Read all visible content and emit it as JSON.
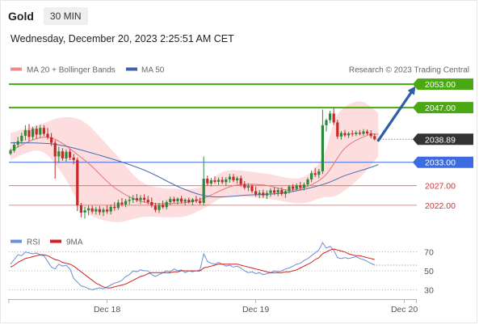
{
  "header": {
    "symbol": "Gold",
    "timeframe": "30 MIN",
    "datetime": "Wednesday, December 20, 2023 2:25:51 AM CET"
  },
  "legend": {
    "ma20": "MA 20 + Bollinger Bands",
    "ma50": "MA 50",
    "credit": "Research © 2023 Trading Central"
  },
  "colors": {
    "up": "#2a8a3a",
    "down": "#c62828",
    "ma20": "#e07878",
    "ma50": "#4a6bb5",
    "band": "#fdd7d7",
    "green_level": "#4aa812",
    "blue_level": "#3d6be0",
    "red_level": "#e86060",
    "price_label": "#333333",
    "arrow": "#2e5ea8",
    "rsi": "#6a8fd8",
    "rsi_ma": "#d42020"
  },
  "chart_data": [
    {
      "type": "candlestick",
      "ylim": [
        2017,
        2058
      ],
      "x_ticks": [
        "Dec 18",
        "Dec 19",
        "Dec 20"
      ],
      "x_tick_index": [
        26,
        66,
        106
      ],
      "levels": [
        {
          "value": 2053.0,
          "label": "2053.00",
          "style": "green"
        },
        {
          "value": 2047.0,
          "label": "2047.00",
          "style": "green"
        },
        {
          "value": 2038.89,
          "label": "2038.89",
          "style": "price"
        },
        {
          "value": 2033.0,
          "label": "2033.00",
          "style": "blue"
        },
        {
          "value": 2027.0,
          "label": "2027.00",
          "style": "red"
        },
        {
          "value": 2022.0,
          "label": "2022.00",
          "style": "red"
        }
      ],
      "candles": [
        [
          2035.2,
          2036.5,
          2034.8,
          2036.0
        ],
        [
          2036.0,
          2038.2,
          2035.5,
          2037.5
        ],
        [
          2037.5,
          2039.5,
          2036.8,
          2038.4
        ],
        [
          2038.4,
          2040.6,
          2037.7,
          2039.8
        ],
        [
          2039.8,
          2042.5,
          2038.6,
          2041.2
        ],
        [
          2041.2,
          2042.8,
          2038.4,
          2039.5
        ],
        [
          2039.5,
          2042.1,
          2038.7,
          2041.6
        ],
        [
          2041.6,
          2042.4,
          2039.0,
          2040.1
        ],
        [
          2040.1,
          2042.6,
          2039.3,
          2041.8
        ],
        [
          2041.8,
          2042.5,
          2039.7,
          2040.3
        ],
        [
          2040.3,
          2041.8,
          2038.9,
          2039.4
        ],
        [
          2039.4,
          2040.5,
          2037.2,
          2038.0
        ],
        [
          2038.0,
          2038.6,
          2028.8,
          2034.5
        ],
        [
          2034.5,
          2037.0,
          2032.8,
          2035.8
        ],
        [
          2035.8,
          2036.6,
          2033.4,
          2034.0
        ],
        [
          2034.0,
          2036.3,
          2033.1,
          2035.7
        ],
        [
          2035.7,
          2036.4,
          2033.6,
          2034.2
        ],
        [
          2034.2,
          2035.1,
          2032.5,
          2033.6
        ],
        [
          2033.6,
          2034.2,
          2020.5,
          2022.0
        ],
        [
          2022.0,
          2022.6,
          2018.9,
          2020.1
        ],
        [
          2020.1,
          2021.6,
          2018.6,
          2020.7
        ],
        [
          2020.7,
          2022.0,
          2019.4,
          2021.2
        ],
        [
          2021.2,
          2021.9,
          2019.8,
          2020.4
        ],
        [
          2020.4,
          2021.6,
          2019.6,
          2021.0
        ],
        [
          2021.0,
          2021.8,
          2019.5,
          2020.2
        ],
        [
          2020.2,
          2021.4,
          2019.2,
          2020.9
        ],
        [
          2020.9,
          2022.0,
          2019.8,
          2020.4
        ],
        [
          2020.4,
          2022.2,
          2019.6,
          2021.6
        ],
        [
          2021.6,
          2022.8,
          2020.6,
          2021.3
        ],
        [
          2021.3,
          2023.4,
          2020.8,
          2022.7
        ],
        [
          2022.7,
          2023.8,
          2021.7,
          2022.2
        ],
        [
          2022.2,
          2023.6,
          2021.5,
          2023.1
        ],
        [
          2023.1,
          2024.2,
          2022.2,
          2023.4
        ],
        [
          2023.4,
          2024.6,
          2022.6,
          2023.8
        ],
        [
          2023.8,
          2024.9,
          2022.8,
          2023.3
        ],
        [
          2023.3,
          2024.6,
          2022.3,
          2023.9
        ],
        [
          2023.9,
          2024.8,
          2022.7,
          2023.4
        ],
        [
          2023.4,
          2024.4,
          2022.2,
          2022.8
        ],
        [
          2022.8,
          2024.0,
          2021.4,
          2021.9
        ],
        [
          2021.9,
          2022.6,
          2020.2,
          2020.8
        ],
        [
          2020.8,
          2022.6,
          2020.0,
          2022.1
        ],
        [
          2022.1,
          2023.2,
          2021.1,
          2021.5
        ],
        [
          2021.5,
          2023.3,
          2020.9,
          2022.8
        ],
        [
          2022.8,
          2024.2,
          2022.0,
          2023.6
        ],
        [
          2023.6,
          2024.2,
          2022.6,
          2023.0
        ],
        [
          2023.0,
          2024.0,
          2022.2,
          2023.7
        ],
        [
          2023.7,
          2024.4,
          2022.4,
          2022.9
        ],
        [
          2022.9,
          2023.8,
          2022.0,
          2023.4
        ],
        [
          2023.4,
          2024.0,
          2022.4,
          2022.8
        ],
        [
          2022.8,
          2023.8,
          2022.0,
          2023.5
        ],
        [
          2023.5,
          2024.4,
          2022.6,
          2023.1
        ],
        [
          2023.1,
          2024.0,
          2022.2,
          2022.6
        ],
        [
          2022.6,
          2034.5,
          2022.0,
          2028.8
        ],
        [
          2028.8,
          2029.6,
          2027.0,
          2027.6
        ],
        [
          2027.6,
          2029.0,
          2026.8,
          2028.4
        ],
        [
          2028.4,
          2029.4,
          2027.6,
          2028.0
        ],
        [
          2028.0,
          2029.1,
          2027.2,
          2028.5
        ],
        [
          2028.5,
          2029.3,
          2027.4,
          2027.9
        ],
        [
          2027.9,
          2029.2,
          2027.0,
          2028.6
        ],
        [
          2028.6,
          2030.0,
          2027.8,
          2029.3
        ],
        [
          2029.3,
          2030.0,
          2027.9,
          2028.4
        ],
        [
          2028.4,
          2029.4,
          2027.5,
          2028.9
        ],
        [
          2028.9,
          2029.6,
          2026.8,
          2027.4
        ],
        [
          2027.4,
          2028.2,
          2026.0,
          2026.5
        ],
        [
          2026.5,
          2027.6,
          2025.6,
          2026.9
        ],
        [
          2026.9,
          2027.4,
          2025.1,
          2025.6
        ],
        [
          2025.6,
          2026.8,
          2024.2,
          2024.8
        ],
        [
          2024.8,
          2025.9,
          2023.8,
          2025.2
        ],
        [
          2025.2,
          2026.0,
          2023.9,
          2024.5
        ],
        [
          2024.5,
          2025.8,
          2023.6,
          2025.1
        ],
        [
          2025.1,
          2026.4,
          2024.2,
          2025.8
        ],
        [
          2025.8,
          2026.6,
          2024.6,
          2025.2
        ],
        [
          2025.2,
          2026.4,
          2024.3,
          2025.9
        ],
        [
          2025.9,
          2026.6,
          2024.4,
          2024.9
        ],
        [
          2024.9,
          2026.0,
          2023.9,
          2025.6
        ],
        [
          2025.6,
          2027.2,
          2025.0,
          2026.8
        ],
        [
          2026.8,
          2027.4,
          2025.6,
          2026.2
        ],
        [
          2026.2,
          2027.6,
          2025.8,
          2027.1
        ],
        [
          2027.1,
          2028.0,
          2025.9,
          2026.5
        ],
        [
          2026.5,
          2027.8,
          2025.8,
          2027.3
        ],
        [
          2027.3,
          2029.1,
          2026.8,
          2028.6
        ],
        [
          2028.6,
          2030.9,
          2027.9,
          2030.2
        ],
        [
          2030.2,
          2031.6,
          2029.2,
          2029.8
        ],
        [
          2029.8,
          2031.3,
          2028.9,
          2030.7
        ],
        [
          2030.7,
          2046.5,
          2030.0,
          2042.5
        ],
        [
          2042.5,
          2044.2,
          2040.9,
          2043.8
        ],
        [
          2043.8,
          2046.2,
          2043.0,
          2045.5
        ],
        [
          2045.5,
          2046.8,
          2042.6,
          2043.2
        ],
        [
          2043.2,
          2043.9,
          2039.0,
          2039.6
        ],
        [
          2039.6,
          2041.0,
          2038.8,
          2040.5
        ],
        [
          2040.5,
          2041.3,
          2039.5,
          2039.9
        ],
        [
          2039.9,
          2040.8,
          2039.2,
          2040.4
        ],
        [
          2040.4,
          2041.2,
          2039.6,
          2040.2
        ],
        [
          2040.2,
          2041.1,
          2039.7,
          2040.6
        ],
        [
          2040.6,
          2041.3,
          2039.9,
          2040.3
        ],
        [
          2040.3,
          2041.5,
          2039.8,
          2040.9
        ],
        [
          2040.9,
          2041.4,
          2040.0,
          2040.4
        ],
        [
          2040.4,
          2041.2,
          2039.2,
          2039.7
        ],
        [
          2039.7,
          2040.4,
          2038.6,
          2038.9
        ]
      ],
      "ma20": [
        [
          0,
          2036.0
        ],
        [
          10,
          2039.4
        ],
        [
          20,
          2033.5
        ],
        [
          28,
          2026.5
        ],
        [
          36,
          2022.8
        ],
        [
          46,
          2022.6
        ],
        [
          52,
          2023.8
        ],
        [
          60,
          2027.0
        ],
        [
          68,
          2027.2
        ],
        [
          76,
          2025.9
        ],
        [
          84,
          2029.0
        ],
        [
          90,
          2036.6
        ],
        [
          96,
          2039.9
        ],
        [
          99,
          2040.2
        ]
      ],
      "ma50": [
        [
          0,
          2038.0
        ],
        [
          12,
          2037.6
        ],
        [
          24,
          2034.8
        ],
        [
          36,
          2031.0
        ],
        [
          46,
          2026.4
        ],
        [
          54,
          2024.2
        ],
        [
          64,
          2024.6
        ],
        [
          74,
          2025.2
        ],
        [
          84,
          2027.3
        ],
        [
          90,
          2029.6
        ],
        [
          96,
          2031.4
        ],
        [
          99,
          2032.4
        ]
      ],
      "bands": {
        "upper": [
          [
            0,
            2040.5
          ],
          [
            8,
            2042.7
          ],
          [
            14,
            2044.5
          ],
          [
            20,
            2043.2
          ],
          [
            28,
            2035.4
          ],
          [
            36,
            2027.6
          ],
          [
            46,
            2026.2
          ],
          [
            52,
            2027.0
          ],
          [
            58,
            2030.8
          ],
          [
            68,
            2030.2
          ],
          [
            78,
            2029.0
          ],
          [
            84,
            2034.3
          ],
          [
            88,
            2045.2
          ],
          [
            94,
            2048.6
          ],
          [
            99,
            2045.6
          ]
        ],
        "lower": [
          [
            0,
            2033.6
          ],
          [
            8,
            2035.9
          ],
          [
            14,
            2030.0
          ],
          [
            20,
            2020.6
          ],
          [
            28,
            2017.7
          ],
          [
            36,
            2019.0
          ],
          [
            46,
            2019.0
          ],
          [
            52,
            2021.2
          ],
          [
            58,
            2024.1
          ],
          [
            68,
            2023.8
          ],
          [
            78,
            2022.5
          ],
          [
            84,
            2024.0
          ],
          [
            88,
            2024.6
          ],
          [
            94,
            2029.0
          ],
          [
            99,
            2034.6
          ]
        ]
      },
      "forecast_arrow": {
        "from": [
          99,
          2038.6
        ],
        "to": [
          109,
          2052.5
        ]
      },
      "legend_entries": [
        "MA 20 + Bollinger Bands",
        "MA 50"
      ]
    },
    {
      "type": "line",
      "title": "RSI",
      "ylim": [
        20,
        80
      ],
      "y_ticks": [
        70,
        50,
        30
      ],
      "legend_entries": [
        "RSI",
        "9MA"
      ],
      "series": [
        {
          "name": "RSI",
          "values": [
            57,
            62,
            67,
            66,
            70,
            69,
            68,
            69,
            67,
            66,
            60,
            54,
            52,
            57,
            55,
            56,
            52,
            42,
            38,
            34,
            33,
            31,
            30,
            31,
            32,
            31,
            33,
            35,
            37,
            38,
            40,
            44,
            46,
            50,
            49,
            51,
            50,
            50,
            46,
            44,
            46,
            48,
            50,
            49,
            52,
            50,
            51,
            48,
            50,
            49,
            50,
            51,
            68,
            60,
            58,
            57,
            59,
            57,
            55,
            56,
            54,
            55,
            53,
            50,
            48,
            49,
            47,
            48,
            46,
            47,
            48,
            50,
            49,
            50,
            52,
            53,
            55,
            57,
            58,
            61,
            63,
            66,
            69,
            72,
            80,
            74,
            76,
            72,
            64,
            63,
            64,
            63,
            64,
            65,
            63,
            62,
            60,
            58,
            56
          ]
        },
        {
          "name": "9MA",
          "values": [
            54,
            56,
            59,
            61,
            63,
            64,
            65,
            66,
            67,
            67,
            66,
            64,
            62,
            61,
            59,
            58,
            57,
            55,
            52,
            49,
            46,
            43,
            40,
            37,
            35,
            33,
            32,
            32,
            33,
            34,
            35,
            36,
            38,
            40,
            42,
            44,
            45,
            47,
            48,
            48,
            48,
            48,
            48,
            48,
            49,
            49,
            50,
            50,
            50,
            50,
            50,
            50,
            53,
            54,
            55,
            56,
            57,
            57,
            57,
            57,
            57,
            57,
            56,
            55,
            54,
            53,
            52,
            51,
            50,
            49,
            48,
            48,
            48,
            48,
            49,
            49,
            50,
            51,
            53,
            55,
            57,
            59,
            62,
            64,
            68,
            70,
            72,
            73,
            72,
            71,
            70,
            68,
            67,
            66,
            66,
            65,
            64,
            63,
            62
          ]
        }
      ]
    }
  ]
}
